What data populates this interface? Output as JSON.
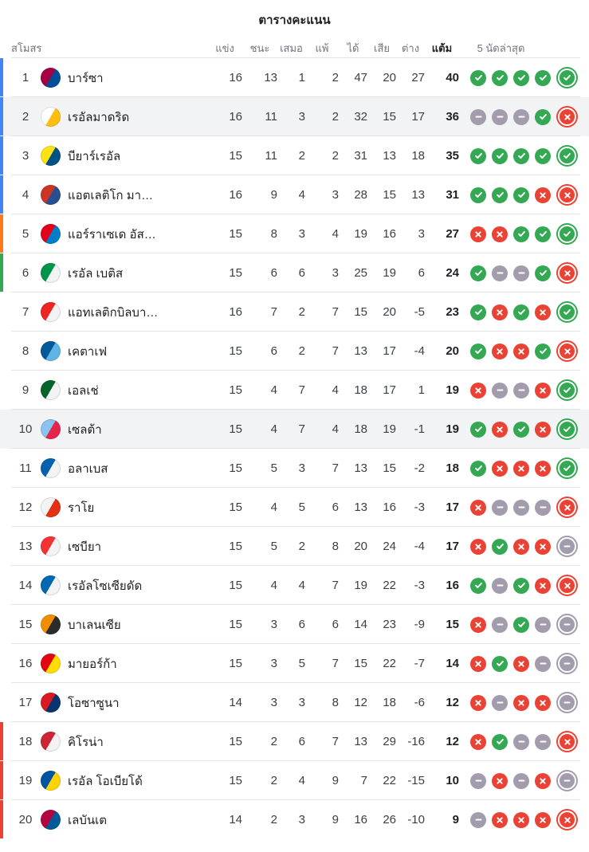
{
  "title": "ตารางคะแนน",
  "table": {
    "headers": {
      "club": "สโมสร",
      "played": "แข่ง",
      "win": "ชนะ",
      "draw": "เสมอ",
      "loss": "แพ้",
      "gf": "ได้",
      "ga": "เสีย",
      "gd": "ต่าง",
      "pts": "แต้ม",
      "form": "5 นัดล่าสุด"
    },
    "rows": [
      {
        "rank": "1",
        "team": "บาร์ซา",
        "played": "16",
        "win": "13",
        "draw": "1",
        "loss": "2",
        "gf": "47",
        "ga": "20",
        "gd": "27",
        "pts": "40",
        "form": [
          "W",
          "W",
          "W",
          "W",
          "W"
        ],
        "zone": "champions",
        "highlighted": false,
        "crest": [
          "#a50044",
          "#004d98"
        ]
      },
      {
        "rank": "2",
        "team": "เรอัลมาดริด",
        "played": "16",
        "win": "11",
        "draw": "3",
        "loss": "2",
        "gf": "32",
        "ga": "15",
        "gd": "17",
        "pts": "36",
        "form": [
          "D",
          "D",
          "D",
          "W",
          "L"
        ],
        "zone": "champions",
        "highlighted": true,
        "crest": [
          "#fefefe",
          "#febe10"
        ]
      },
      {
        "rank": "3",
        "team": "บียาร์เรอัล",
        "played": "15",
        "win": "11",
        "draw": "2",
        "loss": "2",
        "gf": "31",
        "ga": "13",
        "gd": "18",
        "pts": "35",
        "form": [
          "W",
          "W",
          "W",
          "W",
          "W"
        ],
        "zone": "champions",
        "highlighted": false,
        "crest": [
          "#ffe114",
          "#005187"
        ]
      },
      {
        "rank": "4",
        "team": "แอตเลติโก มา…",
        "played": "16",
        "win": "9",
        "draw": "4",
        "loss": "3",
        "gf": "28",
        "ga": "15",
        "gd": "13",
        "pts": "31",
        "form": [
          "W",
          "W",
          "W",
          "L",
          "L"
        ],
        "zone": "champions",
        "highlighted": false,
        "crest": [
          "#cb3524",
          "#2a4f8f"
        ]
      },
      {
        "rank": "5",
        "team": "แอร์ราเซเด อัส…",
        "played": "15",
        "win": "8",
        "draw": "3",
        "loss": "4",
        "gf": "19",
        "ga": "16",
        "gd": "3",
        "pts": "27",
        "form": [
          "L",
          "L",
          "W",
          "W",
          "W"
        ],
        "zone": "europa",
        "highlighted": false,
        "crest": [
          "#e3001b",
          "#007fc8"
        ]
      },
      {
        "rank": "6",
        "team": "เรอัล เบติส",
        "played": "15",
        "win": "6",
        "draw": "6",
        "loss": "3",
        "gf": "25",
        "ga": "19",
        "gd": "6",
        "pts": "24",
        "form": [
          "W",
          "D",
          "D",
          "W",
          "L"
        ],
        "zone": "conference",
        "highlighted": false,
        "crest": [
          "#00954c",
          "#f3f3f3"
        ]
      },
      {
        "rank": "7",
        "team": "แอทเลติกบิลบา…",
        "played": "16",
        "win": "7",
        "draw": "2",
        "loss": "7",
        "gf": "15",
        "ga": "20",
        "gd": "-5",
        "pts": "23",
        "form": [
          "W",
          "L",
          "W",
          "L",
          "W"
        ],
        "zone": null,
        "highlighted": false,
        "crest": [
          "#ee2523",
          "#f3f3f3"
        ]
      },
      {
        "rank": "8",
        "team": "เคตาเฟ",
        "played": "15",
        "win": "6",
        "draw": "2",
        "loss": "7",
        "gf": "13",
        "ga": "17",
        "gd": "-4",
        "pts": "20",
        "form": [
          "W",
          "L",
          "L",
          "W",
          "L"
        ],
        "zone": null,
        "highlighted": false,
        "crest": [
          "#005999",
          "#60b4e5"
        ]
      },
      {
        "rank": "9",
        "team": "เอลเช่",
        "played": "15",
        "win": "4",
        "draw": "7",
        "loss": "4",
        "gf": "18",
        "ga": "17",
        "gd": "1",
        "pts": "19",
        "form": [
          "L",
          "D",
          "D",
          "L",
          "W"
        ],
        "zone": null,
        "highlighted": false,
        "crest": [
          "#05642c",
          "#f3f3f3"
        ]
      },
      {
        "rank": "10",
        "team": "เซลต้า",
        "played": "15",
        "win": "4",
        "draw": "7",
        "loss": "4",
        "gf": "18",
        "ga": "19",
        "gd": "-1",
        "pts": "19",
        "form": [
          "W",
          "L",
          "W",
          "L",
          "W"
        ],
        "zone": null,
        "highlighted": true,
        "crest": [
          "#8ac3ee",
          "#e5254e"
        ]
      },
      {
        "rank": "11",
        "team": "อลาเบส",
        "played": "15",
        "win": "5",
        "draw": "3",
        "loss": "7",
        "gf": "13",
        "ga": "15",
        "gd": "-2",
        "pts": "18",
        "form": [
          "W",
          "L",
          "L",
          "L",
          "W"
        ],
        "zone": null,
        "highlighted": false,
        "crest": [
          "#0761af",
          "#f3f3f3"
        ]
      },
      {
        "rank": "12",
        "team": "ราโย",
        "played": "15",
        "win": "4",
        "draw": "5",
        "loss": "6",
        "gf": "13",
        "ga": "16",
        "gd": "-3",
        "pts": "17",
        "form": [
          "L",
          "D",
          "D",
          "D",
          "L"
        ],
        "zone": null,
        "highlighted": false,
        "crest": [
          "#f3f3f3",
          "#e53013"
        ]
      },
      {
        "rank": "13",
        "team": "เซบียา",
        "played": "15",
        "win": "5",
        "draw": "2",
        "loss": "8",
        "gf": "20",
        "ga": "24",
        "gd": "-4",
        "pts": "17",
        "form": [
          "L",
          "W",
          "L",
          "L",
          "D"
        ],
        "zone": null,
        "highlighted": false,
        "crest": [
          "#f43333",
          "#f3f3f3"
        ]
      },
      {
        "rank": "14",
        "team": "เรอัลโซเซียดัด",
        "played": "15",
        "win": "4",
        "draw": "4",
        "loss": "7",
        "gf": "19",
        "ga": "22",
        "gd": "-3",
        "pts": "16",
        "form": [
          "W",
          "D",
          "W",
          "L",
          "L"
        ],
        "zone": null,
        "highlighted": false,
        "crest": [
          "#0067b1",
          "#f3f3f3"
        ]
      },
      {
        "rank": "15",
        "team": "บาเลนเซีย",
        "played": "15",
        "win": "3",
        "draw": "6",
        "loss": "6",
        "gf": "14",
        "ga": "23",
        "gd": "-9",
        "pts": "15",
        "form": [
          "L",
          "D",
          "W",
          "D",
          "D"
        ],
        "zone": null,
        "highlighted": false,
        "crest": [
          "#f18e00",
          "#2b2b2b"
        ]
      },
      {
        "rank": "16",
        "team": "มายอร์ก้า",
        "played": "15",
        "win": "3",
        "draw": "5",
        "loss": "7",
        "gf": "15",
        "ga": "22",
        "gd": "-7",
        "pts": "14",
        "form": [
          "L",
          "W",
          "L",
          "D",
          "D"
        ],
        "zone": null,
        "highlighted": false,
        "crest": [
          "#e20613",
          "#ffdd00"
        ]
      },
      {
        "rank": "17",
        "team": "โอซาซูนา",
        "played": "14",
        "win": "3",
        "draw": "3",
        "loss": "8",
        "gf": "12",
        "ga": "18",
        "gd": "-6",
        "pts": "12",
        "form": [
          "L",
          "D",
          "L",
          "L",
          "D"
        ],
        "zone": null,
        "highlighted": false,
        "crest": [
          "#d91a21",
          "#0a346f"
        ]
      },
      {
        "rank": "18",
        "team": "คิโรน่า",
        "played": "15",
        "win": "2",
        "draw": "6",
        "loss": "7",
        "gf": "13",
        "ga": "29",
        "gd": "-16",
        "pts": "12",
        "form": [
          "L",
          "W",
          "D",
          "D",
          "L"
        ],
        "zone": "relegation",
        "highlighted": false,
        "crest": [
          "#cd2534",
          "#f3f3f3"
        ]
      },
      {
        "rank": "19",
        "team": "เรอัล โอเบียโด้",
        "played": "15",
        "win": "2",
        "draw": "4",
        "loss": "9",
        "gf": "7",
        "ga": "22",
        "gd": "-15",
        "pts": "10",
        "form": [
          "D",
          "L",
          "D",
          "L",
          "D"
        ],
        "zone": "relegation",
        "highlighted": false,
        "crest": [
          "#0053a0",
          "#ffd200"
        ]
      },
      {
        "rank": "20",
        "team": "เลบันเต",
        "played": "14",
        "win": "2",
        "draw": "3",
        "loss": "9",
        "gf": "16",
        "ga": "26",
        "gd": "-10",
        "pts": "9",
        "form": [
          "D",
          "L",
          "L",
          "L",
          "L"
        ],
        "zone": "relegation",
        "highlighted": false,
        "crest": [
          "#b4053f",
          "#005999"
        ]
      }
    ]
  },
  "colors": {
    "win": "#34a853",
    "draw": "#a39cac",
    "loss": "#ea4335",
    "zone_champions": "#4285f4",
    "zone_europa": "#fa7b17",
    "zone_conference": "#34a853",
    "zone_relegation": "#ea4335",
    "row_highlight": "#f1f3f4"
  },
  "form_icon_names": {
    "W": "form-win-check-icon",
    "D": "form-draw-dash-icon",
    "L": "form-loss-cross-icon"
  }
}
